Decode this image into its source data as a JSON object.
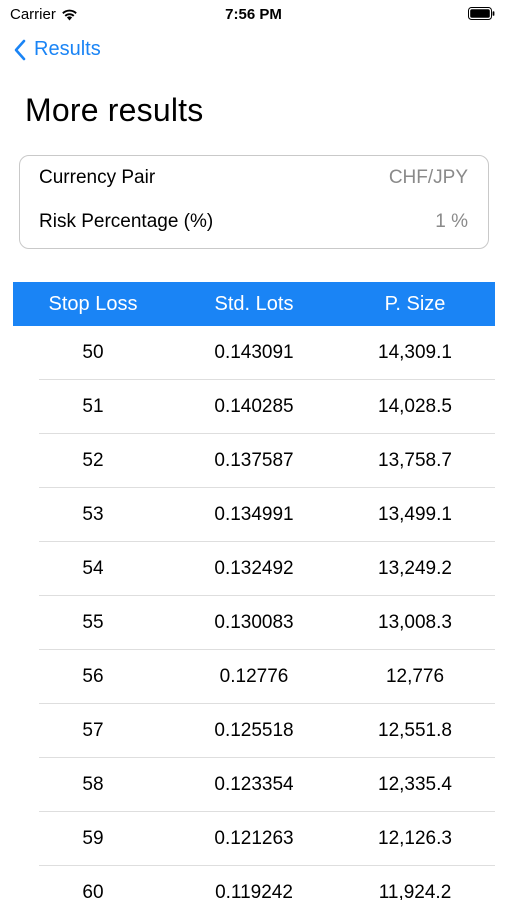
{
  "status_bar": {
    "carrier": "Carrier",
    "time": "7:56 PM"
  },
  "nav": {
    "back_label": "Results"
  },
  "title": "More results",
  "info": {
    "currency_pair_label": "Currency Pair",
    "currency_pair_value": "CHF/JPY",
    "risk_label": "Risk Percentage (%)",
    "risk_value": "1 %"
  },
  "table": {
    "headers": [
      "Stop Loss",
      "Std. Lots",
      "P. Size"
    ],
    "rows": [
      [
        "50",
        "0.143091",
        "14,309.1"
      ],
      [
        "51",
        "0.140285",
        "14,028.5"
      ],
      [
        "52",
        "0.137587",
        "13,758.7"
      ],
      [
        "53",
        "0.134991",
        "13,499.1"
      ],
      [
        "54",
        "0.132492",
        "13,249.2"
      ],
      [
        "55",
        "0.130083",
        "13,008.3"
      ],
      [
        "56",
        "0.12776",
        "12,776"
      ],
      [
        "57",
        "0.125518",
        "12,551.8"
      ],
      [
        "58",
        "0.123354",
        "12,335.4"
      ],
      [
        "59",
        "0.121263",
        "12,126.3"
      ],
      [
        "60",
        "0.119242",
        "11,924.2"
      ]
    ]
  },
  "colors": {
    "accent": "#1a84f5",
    "secondary_text": "#8a8a8a"
  }
}
